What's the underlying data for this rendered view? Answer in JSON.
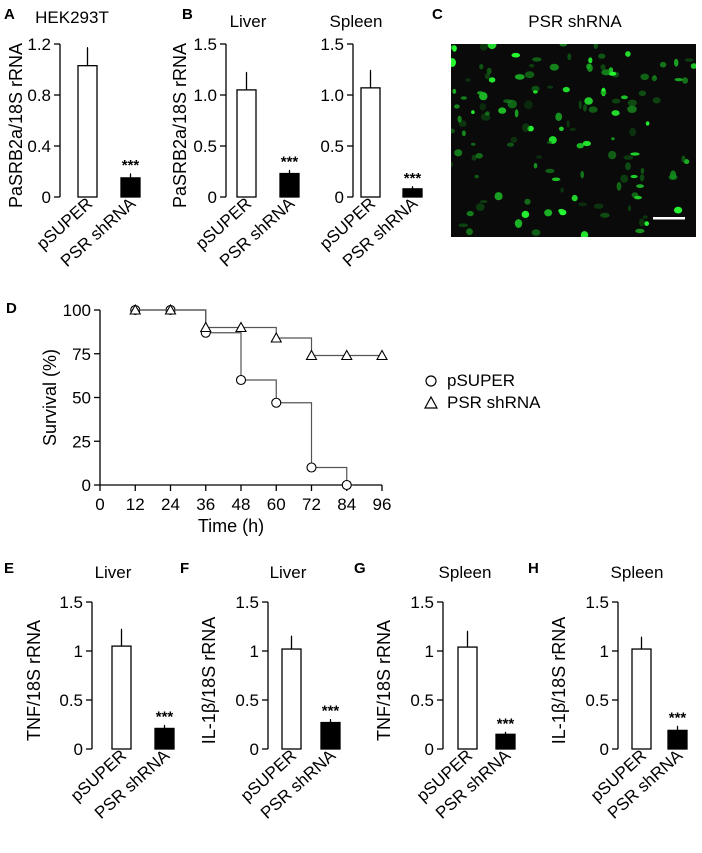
{
  "panels": {
    "A": {
      "label": "A",
      "title": "HEK293T",
      "ylabel": "PaSRB2a/18S rRNA",
      "ylim": [
        0,
        1.2
      ],
      "yticks": [
        "0",
        "0.4",
        "0.8",
        "1.2"
      ],
      "ytick_values": [
        0,
        0.4,
        0.8,
        1.2
      ],
      "categories": [
        "pSUPER",
        "PSR shRNA"
      ],
      "values": [
        1.03,
        0.15
      ],
      "errors": [
        0.14,
        0.03
      ],
      "significance": [
        "",
        "***"
      ]
    },
    "B_liver": {
      "label": "B",
      "title": "Liver",
      "ylabel": "PaSRB2a/18S rRNA",
      "ylim": [
        0,
        1.5
      ],
      "yticks": [
        "0",
        "0.5",
        "1.0",
        "1.5"
      ],
      "ytick_values": [
        0,
        0.5,
        1.0,
        1.5
      ],
      "categories": [
        "pSUPER",
        "PSR shRNA"
      ],
      "values": [
        1.05,
        0.23
      ],
      "errors": [
        0.17,
        0.03
      ],
      "significance": [
        "",
        "***"
      ]
    },
    "B_spleen": {
      "label": "",
      "title": "Spleen",
      "ylabel": "",
      "ylim": [
        0,
        1.5
      ],
      "yticks": [
        "0",
        "0.5",
        "1.0",
        "1.5"
      ],
      "ytick_values": [
        0,
        0.5,
        1.0,
        1.5
      ],
      "categories": [
        "pSUPER",
        "PSR shRNA"
      ],
      "values": [
        1.07,
        0.08
      ],
      "errors": [
        0.17,
        0.02
      ],
      "significance": [
        "",
        "***"
      ]
    },
    "C": {
      "label": "C",
      "title": "PSR shRNA"
    },
    "D": {
      "label": "D",
      "xlabel": "Time (h)",
      "ylabel": "Survival (%)",
      "xlim": [
        0,
        96
      ],
      "ylim": [
        0,
        100
      ],
      "xticks": [
        "0",
        "12",
        "24",
        "36",
        "48",
        "60",
        "72",
        "84",
        "96"
      ],
      "xtick_values": [
        0,
        12,
        24,
        36,
        48,
        60,
        72,
        84,
        96
      ],
      "yticks": [
        "0",
        "25",
        "50",
        "75",
        "100"
      ],
      "ytick_values": [
        0,
        25,
        50,
        75,
        100
      ],
      "legend": [
        "pSUPER",
        "PSR shRNA"
      ]
    },
    "E": {
      "label": "E",
      "title": "Liver",
      "ylabel": "TNF/18S rRNA",
      "ylim": [
        0,
        1.5
      ],
      "yticks": [
        "0",
        "0.5",
        "1",
        "1.5"
      ],
      "ytick_values": [
        0,
        0.5,
        1,
        1.5
      ],
      "categories": [
        "pSUPER",
        "PSR shRNA"
      ],
      "values": [
        1.05,
        0.21
      ],
      "errors": [
        0.17,
        0.03
      ],
      "significance": [
        "",
        "***"
      ]
    },
    "F": {
      "label": "F",
      "title": "Liver",
      "ylabel": "IL-1β/18S rRNA",
      "ylim": [
        0,
        1.5
      ],
      "yticks": [
        "0",
        "0.5",
        "1",
        "1.5"
      ],
      "ytick_values": [
        0,
        0.5,
        1,
        1.5
      ],
      "categories": [
        "pSUPER",
        "PSR shRNA"
      ],
      "values": [
        1.02,
        0.27
      ],
      "errors": [
        0.13,
        0.03
      ],
      "significance": [
        "",
        "***"
      ]
    },
    "G": {
      "label": "G",
      "title": "Spleen",
      "ylabel": "TNF/18S rRNA",
      "ylim": [
        0,
        1.5
      ],
      "yticks": [
        "0",
        "0.5",
        "1",
        "1.5"
      ],
      "ytick_values": [
        0,
        0.5,
        1,
        1.5
      ],
      "categories": [
        "pSUPER",
        "PSR shRNA"
      ],
      "values": [
        1.04,
        0.15
      ],
      "errors": [
        0.16,
        0.02
      ],
      "significance": [
        "",
        "***"
      ]
    },
    "H": {
      "label": "H",
      "title": "Spleen",
      "ylabel": "IL-1β/18S rRNA",
      "ylim": [
        0,
        1.5
      ],
      "yticks": [
        "0",
        "0.5",
        "1",
        "1.5"
      ],
      "ytick_values": [
        0,
        0.5,
        1,
        1.5
      ],
      "categories": [
        "pSUPER",
        "PSR shRNA"
      ],
      "values": [
        1.02,
        0.19
      ],
      "errors": [
        0.12,
        0.04
      ],
      "significance": [
        "",
        "***"
      ]
    }
  },
  "chart_data": [
    {
      "type": "bar",
      "title": "HEK293T",
      "ylabel": "PaSRB2a/18S rRNA",
      "categories": [
        "pSUPER",
        "PSR shRNA"
      ],
      "values": [
        1.03,
        0.15
      ],
      "errors": [
        0.14,
        0.03
      ],
      "ylim": [
        0,
        1.2
      ]
    },
    {
      "type": "bar",
      "title": "Liver",
      "ylabel": "PaSRB2a/18S rRNA",
      "categories": [
        "pSUPER",
        "PSR shRNA"
      ],
      "values": [
        1.05,
        0.23
      ],
      "errors": [
        0.17,
        0.03
      ],
      "ylim": [
        0,
        1.5
      ]
    },
    {
      "type": "bar",
      "title": "Spleen",
      "categories": [
        "pSUPER",
        "PSR shRNA"
      ],
      "values": [
        1.07,
        0.08
      ],
      "errors": [
        0.17,
        0.02
      ],
      "ylim": [
        0,
        1.5
      ]
    },
    {
      "type": "line",
      "xlabel": "Time (h)",
      "ylabel": "Survival (%)",
      "xlim": [
        0,
        96
      ],
      "ylim": [
        0,
        100
      ],
      "series": [
        {
          "name": "pSUPER",
          "marker": "circle",
          "points": [
            [
              12,
              100
            ],
            [
              24,
              100
            ],
            [
              36,
              87
            ],
            [
              48,
              60
            ],
            [
              60,
              47
            ],
            [
              72,
              10
            ],
            [
              84,
              0
            ]
          ]
        },
        {
          "name": "PSR shRNA",
          "marker": "triangle",
          "points": [
            [
              12,
              100
            ],
            [
              24,
              100
            ],
            [
              36,
              90
            ],
            [
              48,
              90
            ],
            [
              60,
              84
            ],
            [
              72,
              74
            ],
            [
              84,
              74
            ],
            [
              96,
              74
            ]
          ]
        }
      ]
    },
    {
      "type": "bar",
      "title": "Liver",
      "ylabel": "TNF/18S rRNA",
      "categories": [
        "pSUPER",
        "PSR shRNA"
      ],
      "values": [
        1.05,
        0.21
      ],
      "errors": [
        0.17,
        0.03
      ],
      "ylim": [
        0,
        1.5
      ]
    },
    {
      "type": "bar",
      "title": "Liver",
      "ylabel": "IL-1β/18S rRNA",
      "categories": [
        "pSUPER",
        "PSR shRNA"
      ],
      "values": [
        1.02,
        0.27
      ],
      "errors": [
        0.13,
        0.03
      ],
      "ylim": [
        0,
        1.5
      ]
    },
    {
      "type": "bar",
      "title": "Spleen",
      "ylabel": "TNF/18S rRNA",
      "categories": [
        "pSUPER",
        "PSR shRNA"
      ],
      "values": [
        1.04,
        0.15
      ],
      "errors": [
        0.16,
        0.02
      ],
      "ylim": [
        0,
        1.5
      ]
    },
    {
      "type": "bar",
      "title": "Spleen",
      "ylabel": "IL-1β/18S rRNA",
      "categories": [
        "pSUPER",
        "PSR shRNA"
      ],
      "values": [
        1.02,
        0.19
      ],
      "errors": [
        0.12,
        0.04
      ],
      "ylim": [
        0,
        1.5
      ]
    }
  ]
}
